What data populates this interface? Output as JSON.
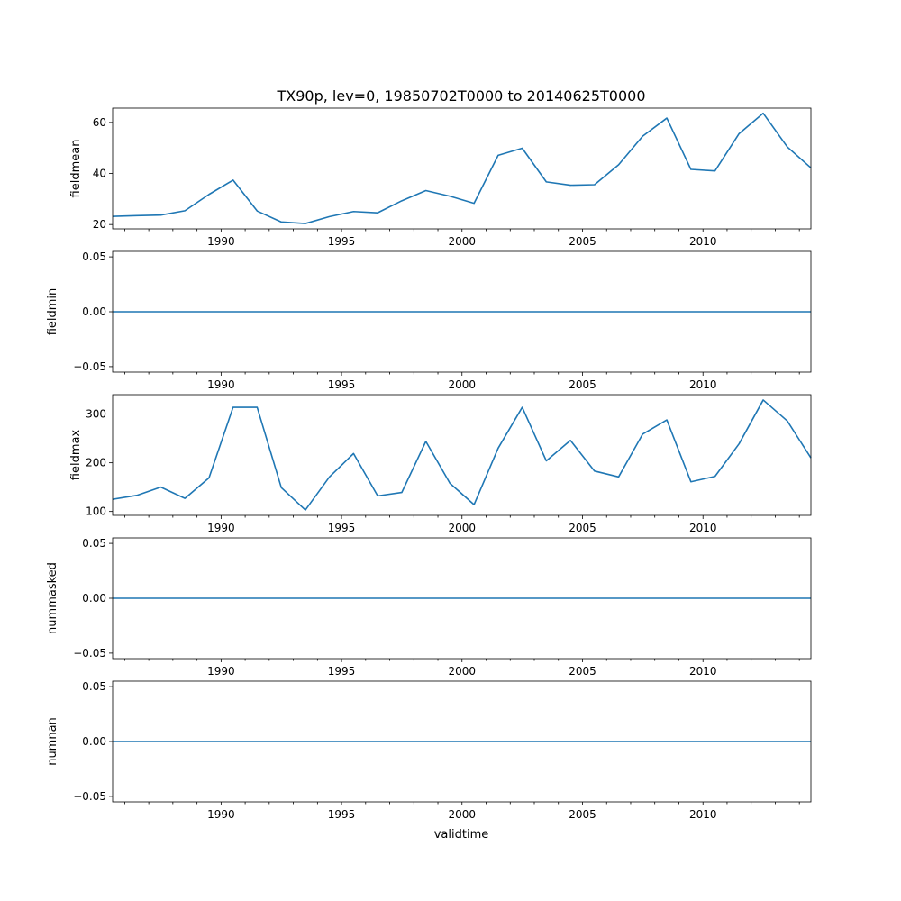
{
  "title": "TX90p, lev=0, 19850702T0000 to 20140625T0000",
  "xlabel": "validtime",
  "x_tick_labels": [
    "1990",
    "1995",
    "2000",
    "2005",
    "2010"
  ],
  "chart_data": [
    {
      "type": "line",
      "ylabel": "fieldmean",
      "x": [
        "1985-07-02",
        "1986-07-02",
        "1987-07-02",
        "1988-07-02",
        "1989-07-02",
        "1990-07-02",
        "1991-07-02",
        "1992-07-02",
        "1993-07-02",
        "1994-07-02",
        "1995-07-02",
        "1996-07-02",
        "1997-07-02",
        "1998-07-02",
        "1999-07-02",
        "2000-07-02",
        "2001-07-02",
        "2002-07-02",
        "2003-07-02",
        "2004-07-02",
        "2005-07-02",
        "2006-07-02",
        "2007-07-02",
        "2008-07-02",
        "2009-07-02",
        "2010-07-02",
        "2011-07-02",
        "2012-07-02",
        "2013-07-02",
        "2014-06-25"
      ],
      "values": [
        23.2,
        23.5,
        23.7,
        25.4,
        31.8,
        37.4,
        25.3,
        21.0,
        20.4,
        23.1,
        25.1,
        24.6,
        29.3,
        33.3,
        31.1,
        28.3,
        47.1,
        49.9,
        36.7,
        35.4,
        35.6,
        43.4,
        54.6,
        61.7,
        41.6,
        41.0,
        55.6,
        63.6,
        50.4,
        42.2
      ],
      "ylim": [
        18.3,
        65.6
      ],
      "yticks": [
        "20",
        "40",
        "60"
      ],
      "ytick_values": [
        20,
        40,
        60
      ],
      "color": "#1f77b4"
    },
    {
      "type": "line",
      "ylabel": "fieldmin",
      "x": [
        "1985-07-02",
        "1986-07-02",
        "1987-07-02",
        "1988-07-02",
        "1989-07-02",
        "1990-07-02",
        "1991-07-02",
        "1992-07-02",
        "1993-07-02",
        "1994-07-02",
        "1995-07-02",
        "1996-07-02",
        "1997-07-02",
        "1998-07-02",
        "1999-07-02",
        "2000-07-02",
        "2001-07-02",
        "2002-07-02",
        "2003-07-02",
        "2004-07-02",
        "2005-07-02",
        "2006-07-02",
        "2007-07-02",
        "2008-07-02",
        "2009-07-02",
        "2010-07-02",
        "2011-07-02",
        "2012-07-02",
        "2013-07-02",
        "2014-06-25"
      ],
      "values": [
        0,
        0,
        0,
        0,
        0,
        0,
        0,
        0,
        0,
        0,
        0,
        0,
        0,
        0,
        0,
        0,
        0,
        0,
        0,
        0,
        0,
        0,
        0,
        0,
        0,
        0,
        0,
        0,
        0,
        0
      ],
      "ylim": [
        -0.055,
        0.055
      ],
      "yticks": [
        "−0.05",
        "0.00",
        "0.05"
      ],
      "ytick_values": [
        -0.05,
        0,
        0.05
      ],
      "color": "#1f77b4"
    },
    {
      "type": "line",
      "ylabel": "fieldmax",
      "x": [
        "1985-07-02",
        "1986-07-02",
        "1987-07-02",
        "1988-07-02",
        "1989-07-02",
        "1990-07-02",
        "1991-07-02",
        "1992-07-02",
        "1993-07-02",
        "1994-07-02",
        "1995-07-02",
        "1996-07-02",
        "1997-07-02",
        "1998-07-02",
        "1999-07-02",
        "2000-07-02",
        "2001-07-02",
        "2002-07-02",
        "2003-07-02",
        "2004-07-02",
        "2005-07-02",
        "2006-07-02",
        "2007-07-02",
        "2008-07-02",
        "2009-07-02",
        "2010-07-02",
        "2011-07-02",
        "2012-07-02",
        "2013-07-02",
        "2014-06-25"
      ],
      "values": [
        125,
        133,
        150,
        127,
        169,
        314,
        314,
        149,
        103,
        171,
        219,
        132,
        139,
        244,
        158,
        114,
        230,
        314,
        204,
        246,
        183,
        171,
        259,
        288,
        161,
        172,
        239,
        329,
        286,
        210
      ],
      "ylim": [
        92,
        340
      ],
      "yticks": [
        "100",
        "200",
        "300"
      ],
      "ytick_values": [
        100,
        200,
        300
      ],
      "color": "#1f77b4"
    },
    {
      "type": "line",
      "ylabel": "nummasked",
      "x": [
        "1985-07-02",
        "1986-07-02",
        "1987-07-02",
        "1988-07-02",
        "1989-07-02",
        "1990-07-02",
        "1991-07-02",
        "1992-07-02",
        "1993-07-02",
        "1994-07-02",
        "1995-07-02",
        "1996-07-02",
        "1997-07-02",
        "1998-07-02",
        "1999-07-02",
        "2000-07-02",
        "2001-07-02",
        "2002-07-02",
        "2003-07-02",
        "2004-07-02",
        "2005-07-02",
        "2006-07-02",
        "2007-07-02",
        "2008-07-02",
        "2009-07-02",
        "2010-07-02",
        "2011-07-02",
        "2012-07-02",
        "2013-07-02",
        "2014-06-25"
      ],
      "values": [
        0,
        0,
        0,
        0,
        0,
        0,
        0,
        0,
        0,
        0,
        0,
        0,
        0,
        0,
        0,
        0,
        0,
        0,
        0,
        0,
        0,
        0,
        0,
        0,
        0,
        0,
        0,
        0,
        0,
        0
      ],
      "ylim": [
        -0.055,
        0.055
      ],
      "yticks": [
        "−0.05",
        "0.00",
        "0.05"
      ],
      "ytick_values": [
        -0.05,
        0,
        0.05
      ],
      "color": "#1f77b4"
    },
    {
      "type": "line",
      "ylabel": "numnan",
      "x": [
        "1985-07-02",
        "1986-07-02",
        "1987-07-02",
        "1988-07-02",
        "1989-07-02",
        "1990-07-02",
        "1991-07-02",
        "1992-07-02",
        "1993-07-02",
        "1994-07-02",
        "1995-07-02",
        "1996-07-02",
        "1997-07-02",
        "1998-07-02",
        "1999-07-02",
        "2000-07-02",
        "2001-07-02",
        "2002-07-02",
        "2003-07-02",
        "2004-07-02",
        "2005-07-02",
        "2006-07-02",
        "2007-07-02",
        "2008-07-02",
        "2009-07-02",
        "2010-07-02",
        "2011-07-02",
        "2012-07-02",
        "2013-07-02",
        "2014-06-25"
      ],
      "values": [
        0,
        0,
        0,
        0,
        0,
        0,
        0,
        0,
        0,
        0,
        0,
        0,
        0,
        0,
        0,
        0,
        0,
        0,
        0,
        0,
        0,
        0,
        0,
        0,
        0,
        0,
        0,
        0,
        0,
        0
      ],
      "ylim": [
        -0.055,
        0.055
      ],
      "yticks": [
        "−0.05",
        "0.00",
        "0.05"
      ],
      "ytick_values": [
        -0.05,
        0,
        0.05
      ],
      "color": "#1f77b4"
    }
  ]
}
